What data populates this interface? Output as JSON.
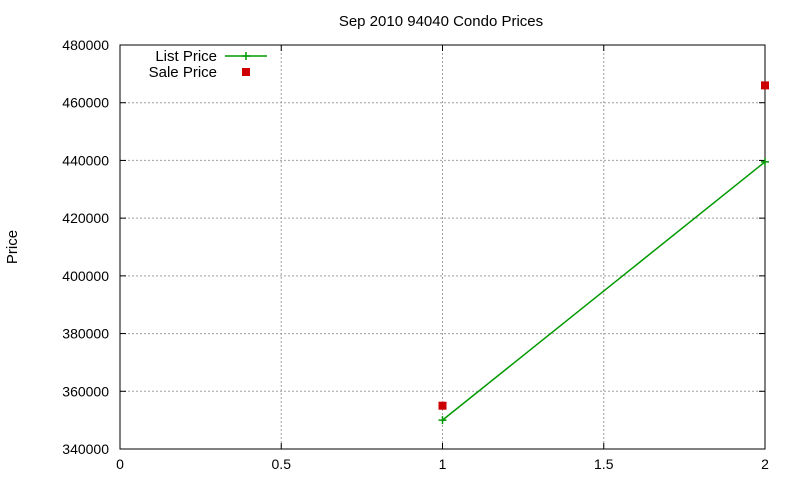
{
  "chart_data": {
    "type": "line",
    "title": "Sep 2010 94040 Condo Prices",
    "xlabel": "",
    "ylabel": "Price",
    "xlim": [
      0,
      2
    ],
    "ylim": [
      340000,
      480000
    ],
    "x_ticks": [
      0,
      0.5,
      1,
      1.5,
      2
    ],
    "x_tick_labels": [
      "0",
      "0.5",
      "1",
      "1.5",
      "2"
    ],
    "y_ticks": [
      340000,
      360000,
      380000,
      400000,
      420000,
      440000,
      460000,
      480000
    ],
    "y_tick_labels": [
      "340000",
      "360000",
      "380000",
      "400000",
      "420000",
      "440000",
      "460000",
      "480000"
    ],
    "grid": true,
    "legend_position": "top-left",
    "series": [
      {
        "name": "List Price",
        "style": "linespoints",
        "marker": "plus",
        "color": "#009900",
        "x": [
          1,
          2
        ],
        "y": [
          350000,
          439500
        ]
      },
      {
        "name": "Sale Price",
        "style": "points",
        "marker": "square",
        "color": "#cc0000",
        "x": [
          1,
          2
        ],
        "y": [
          355000,
          466000
        ]
      }
    ]
  }
}
